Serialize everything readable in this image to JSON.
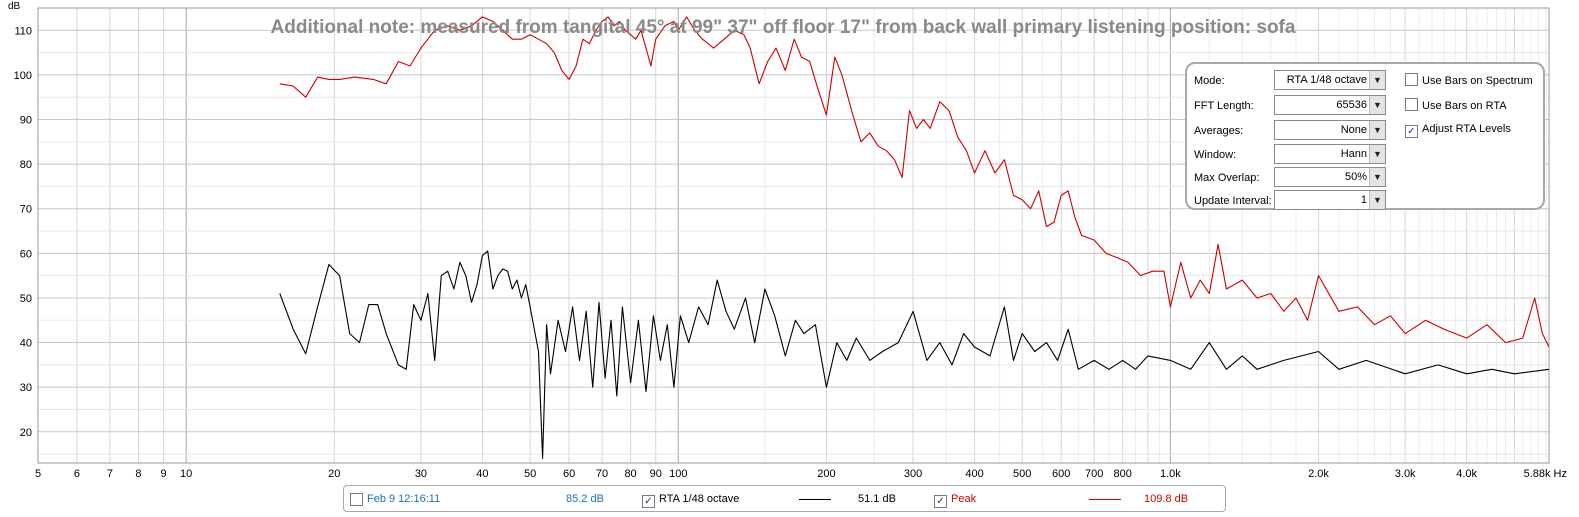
{
  "chart_data": {
    "type": "line",
    "title": "Additional note: measured from tangital 45° at 99\" 37\" off floor 17\" from back wall primary listening position: sofa",
    "ylabel": "dB",
    "x_scale": "log",
    "xlim": [
      5,
      5880
    ],
    "ylim": [
      13,
      115
    ],
    "y_ticks": [
      "20",
      "30",
      "40",
      "50",
      "60",
      "70",
      "80",
      "90",
      "100",
      "110"
    ],
    "x_ticks": [
      "5",
      "6",
      "7",
      "8",
      "9",
      "10",
      "20",
      "30",
      "40",
      "50",
      "60",
      "70",
      "80",
      "90",
      "100",
      "200",
      "300",
      "400",
      "500",
      "600",
      "700",
      "800",
      "1.0k",
      "2.0k",
      "3.0k",
      "4.0k",
      "5.88k Hz"
    ],
    "grid": true,
    "series": [
      {
        "name": "RTA 1/48 octave",
        "color": "#000000",
        "points": [
          [
            15.5,
            51
          ],
          [
            16.5,
            43
          ],
          [
            17.5,
            37.5
          ],
          [
            18.5,
            48
          ],
          [
            19.5,
            57.5
          ],
          [
            20.5,
            55
          ],
          [
            21.5,
            42
          ],
          [
            22.5,
            40
          ],
          [
            23.5,
            48.5
          ],
          [
            24.5,
            48.5
          ],
          [
            25.5,
            42
          ],
          [
            27,
            35
          ],
          [
            28,
            34
          ],
          [
            29,
            48.5
          ],
          [
            30,
            45
          ],
          [
            31,
            51
          ],
          [
            32,
            36
          ],
          [
            33,
            55
          ],
          [
            34,
            56
          ],
          [
            35,
            52
          ],
          [
            36,
            58
          ],
          [
            37,
            55
          ],
          [
            38,
            49
          ],
          [
            39,
            53
          ],
          [
            40,
            59.5
          ],
          [
            41,
            60.5
          ],
          [
            42,
            52
          ],
          [
            43,
            55
          ],
          [
            44,
            56.5
          ],
          [
            45,
            56
          ],
          [
            46,
            52
          ],
          [
            47,
            54
          ],
          [
            48,
            50
          ],
          [
            49,
            53
          ],
          [
            50,
            48
          ],
          [
            51,
            43
          ],
          [
            52,
            38
          ],
          [
            53,
            14
          ],
          [
            54,
            44
          ],
          [
            55,
            33
          ],
          [
            57,
            45
          ],
          [
            59,
            38
          ],
          [
            61,
            48
          ],
          [
            63,
            36
          ],
          [
            65,
            47
          ],
          [
            67,
            30
          ],
          [
            69,
            49
          ],
          [
            71,
            32
          ],
          [
            73,
            45
          ],
          [
            75,
            28
          ],
          [
            77,
            48
          ],
          [
            80,
            31
          ],
          [
            83,
            45
          ],
          [
            86,
            29
          ],
          [
            89,
            46
          ],
          [
            92,
            36
          ],
          [
            95,
            44
          ],
          [
            98,
            30
          ],
          [
            101,
            46
          ],
          [
            105,
            40
          ],
          [
            110,
            48
          ],
          [
            115,
            44
          ],
          [
            120,
            54
          ],
          [
            125,
            47
          ],
          [
            130,
            43
          ],
          [
            137,
            50
          ],
          [
            143,
            40
          ],
          [
            150,
            52
          ],
          [
            157,
            46
          ],
          [
            165,
            37
          ],
          [
            173,
            45
          ],
          [
            180,
            42
          ],
          [
            190,
            44
          ],
          [
            200,
            30
          ],
          [
            210,
            40
          ],
          [
            220,
            36
          ],
          [
            230,
            41
          ],
          [
            245,
            36
          ],
          [
            260,
            38
          ],
          [
            280,
            40
          ],
          [
            300,
            47
          ],
          [
            320,
            36
          ],
          [
            340,
            40
          ],
          [
            360,
            35
          ],
          [
            380,
            42
          ],
          [
            400,
            39
          ],
          [
            430,
            37
          ],
          [
            460,
            48
          ],
          [
            480,
            36
          ],
          [
            500,
            42
          ],
          [
            530,
            38
          ],
          [
            560,
            40
          ],
          [
            590,
            36
          ],
          [
            620,
            43
          ],
          [
            650,
            34
          ],
          [
            700,
            36
          ],
          [
            750,
            34
          ],
          [
            800,
            36
          ],
          [
            850,
            34
          ],
          [
            900,
            37
          ],
          [
            1000,
            36
          ],
          [
            1100,
            34
          ],
          [
            1200,
            40
          ],
          [
            1300,
            34
          ],
          [
            1400,
            37
          ],
          [
            1500,
            34
          ],
          [
            1700,
            36
          ],
          [
            2000,
            38
          ],
          [
            2200,
            34
          ],
          [
            2500,
            36
          ],
          [
            3000,
            33
          ],
          [
            3500,
            35
          ],
          [
            4000,
            33
          ],
          [
            4500,
            34
          ],
          [
            5000,
            33
          ],
          [
            5880,
            34
          ]
        ]
      },
      {
        "name": "Peak",
        "color": "#cc0000",
        "points": [
          [
            15.5,
            98
          ],
          [
            16.5,
            97.5
          ],
          [
            17.5,
            95
          ],
          [
            18.5,
            99.5
          ],
          [
            19.5,
            99
          ],
          [
            20.5,
            99
          ],
          [
            22,
            99.5
          ],
          [
            24,
            99
          ],
          [
            25.5,
            98
          ],
          [
            27,
            103
          ],
          [
            28.5,
            102
          ],
          [
            30,
            106
          ],
          [
            32,
            110
          ],
          [
            34,
            111
          ],
          [
            36,
            110
          ],
          [
            38,
            111
          ],
          [
            40,
            113
          ],
          [
            42,
            112
          ],
          [
            44,
            110
          ],
          [
            46,
            108
          ],
          [
            48,
            108
          ],
          [
            50,
            109
          ],
          [
            52,
            108
          ],
          [
            54,
            107
          ],
          [
            56,
            105
          ],
          [
            58,
            101
          ],
          [
            60,
            99
          ],
          [
            62,
            102
          ],
          [
            64,
            108
          ],
          [
            66,
            107
          ],
          [
            68,
            110
          ],
          [
            70,
            112
          ],
          [
            72,
            113
          ],
          [
            74,
            111
          ],
          [
            76,
            112
          ],
          [
            78,
            110
          ],
          [
            80,
            109
          ],
          [
            82,
            108
          ],
          [
            84,
            110
          ],
          [
            86,
            106
          ],
          [
            88,
            102
          ],
          [
            90,
            108
          ],
          [
            94,
            111
          ],
          [
            98,
            112
          ],
          [
            100,
            110
          ],
          [
            104,
            113
          ],
          [
            108,
            110
          ],
          [
            112,
            108
          ],
          [
            118,
            106
          ],
          [
            124,
            108
          ],
          [
            130,
            110
          ],
          [
            136,
            109
          ],
          [
            140,
            106
          ],
          [
            146,
            98
          ],
          [
            152,
            103
          ],
          [
            158,
            106
          ],
          [
            165,
            101
          ],
          [
            172,
            108
          ],
          [
            178,
            104
          ],
          [
            185,
            103
          ],
          [
            192,
            97
          ],
          [
            200,
            91
          ],
          [
            208,
            104
          ],
          [
            215,
            100
          ],
          [
            225,
            92
          ],
          [
            235,
            85
          ],
          [
            245,
            87
          ],
          [
            255,
            84
          ],
          [
            265,
            83
          ],
          [
            275,
            81
          ],
          [
            285,
            77
          ],
          [
            295,
            92
          ],
          [
            305,
            88
          ],
          [
            315,
            90
          ],
          [
            325,
            88
          ],
          [
            340,
            94
          ],
          [
            355,
            92
          ],
          [
            370,
            86
          ],
          [
            385,
            83
          ],
          [
            400,
            78
          ],
          [
            420,
            83
          ],
          [
            440,
            78
          ],
          [
            460,
            81
          ],
          [
            480,
            73
          ],
          [
            500,
            72
          ],
          [
            520,
            70
          ],
          [
            540,
            74
          ],
          [
            560,
            66
          ],
          [
            580,
            67
          ],
          [
            600,
            73
          ],
          [
            620,
            74
          ],
          [
            640,
            68
          ],
          [
            660,
            64
          ],
          [
            700,
            63
          ],
          [
            740,
            60
          ],
          [
            780,
            59
          ],
          [
            820,
            58
          ],
          [
            870,
            55
          ],
          [
            920,
            56
          ],
          [
            970,
            56
          ],
          [
            1000,
            48
          ],
          [
            1050,
            58
          ],
          [
            1100,
            50
          ],
          [
            1150,
            54
          ],
          [
            1200,
            51
          ],
          [
            1250,
            62
          ],
          [
            1300,
            52
          ],
          [
            1400,
            54
          ],
          [
            1500,
            50
          ],
          [
            1600,
            51
          ],
          [
            1700,
            47
          ],
          [
            1800,
            50
          ],
          [
            1900,
            45
          ],
          [
            2000,
            55
          ],
          [
            2200,
            47
          ],
          [
            2400,
            48
          ],
          [
            2600,
            44
          ],
          [
            2800,
            46
          ],
          [
            3000,
            42
          ],
          [
            3300,
            45
          ],
          [
            3600,
            43
          ],
          [
            4000,
            41
          ],
          [
            4400,
            44
          ],
          [
            4800,
            40
          ],
          [
            5200,
            41
          ],
          [
            5500,
            50
          ],
          [
            5700,
            42
          ],
          [
            5880,
            39
          ]
        ]
      }
    ],
    "legend_placement": "bottom"
  },
  "controls": {
    "mode_label": "Mode:",
    "mode_value": "RTA 1/48 octave",
    "fft_label": "FFT Length:",
    "fft_value": "65536",
    "averages_label": "Averages:",
    "averages_value": "None",
    "window_label": "Window:",
    "window_value": "Hann",
    "overlap_label": "Max Overlap:",
    "overlap_value": "50%",
    "update_label": "Update Interval:",
    "update_value": "1",
    "bars_spectrum_label": "Use Bars on Spectrum",
    "bars_rta_label": "Use Bars on RTA",
    "adjust_rta_label": "Adjust RTA Levels"
  },
  "legend": {
    "meas_name": "Feb 9 12:16:11",
    "meas_value": "85.2 dB",
    "meas_color": "#1f6fb2",
    "rta_name": "RTA 1/48 octave",
    "rta_value": "51.1 dB",
    "peak_name": "Peak",
    "peak_value": "109.8 dB",
    "peak_color": "#cc0000"
  }
}
